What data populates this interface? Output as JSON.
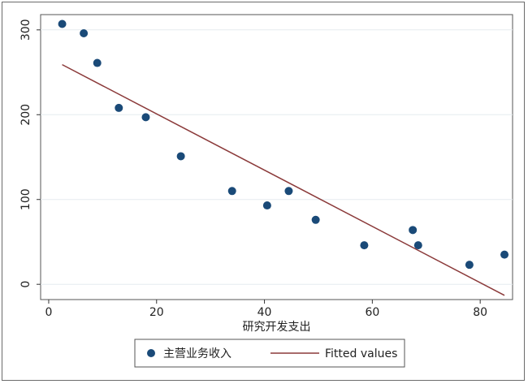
{
  "chart_data": {
    "type": "scatter",
    "xlabel": "研究开发支出",
    "ylabel": "",
    "xlim": [
      -1.5,
      86
    ],
    "ylim": [
      -18,
      318
    ],
    "xticks": [
      0,
      20,
      40,
      60,
      80
    ],
    "yticks": [
      0,
      100,
      200,
      300
    ],
    "grid": true,
    "legend_placement": "bottom",
    "series": [
      {
        "name": "主营业务收入",
        "kind": "scatter",
        "color": "#1a4a78",
        "x": [
          2.5,
          6.5,
          9,
          13,
          18,
          24.5,
          34,
          40.5,
          44.5,
          49.5,
          58.5,
          67.5,
          68.5,
          78,
          84.5
        ],
        "y": [
          307,
          296,
          261,
          208,
          197,
          151,
          110,
          93,
          110,
          76,
          46,
          64,
          46,
          23,
          35
        ]
      },
      {
        "name": "Fitted values",
        "kind": "line",
        "color": "#8b3a3a",
        "x": [
          2.5,
          84.5
        ],
        "y": [
          259,
          -13
        ]
      }
    ]
  },
  "legend": {
    "items": [
      {
        "label": "主营业务收入",
        "marker": "dot",
        "color": "#1a4a78"
      },
      {
        "label": "Fitted values",
        "marker": "line",
        "color": "#8b3a3a"
      }
    ]
  }
}
